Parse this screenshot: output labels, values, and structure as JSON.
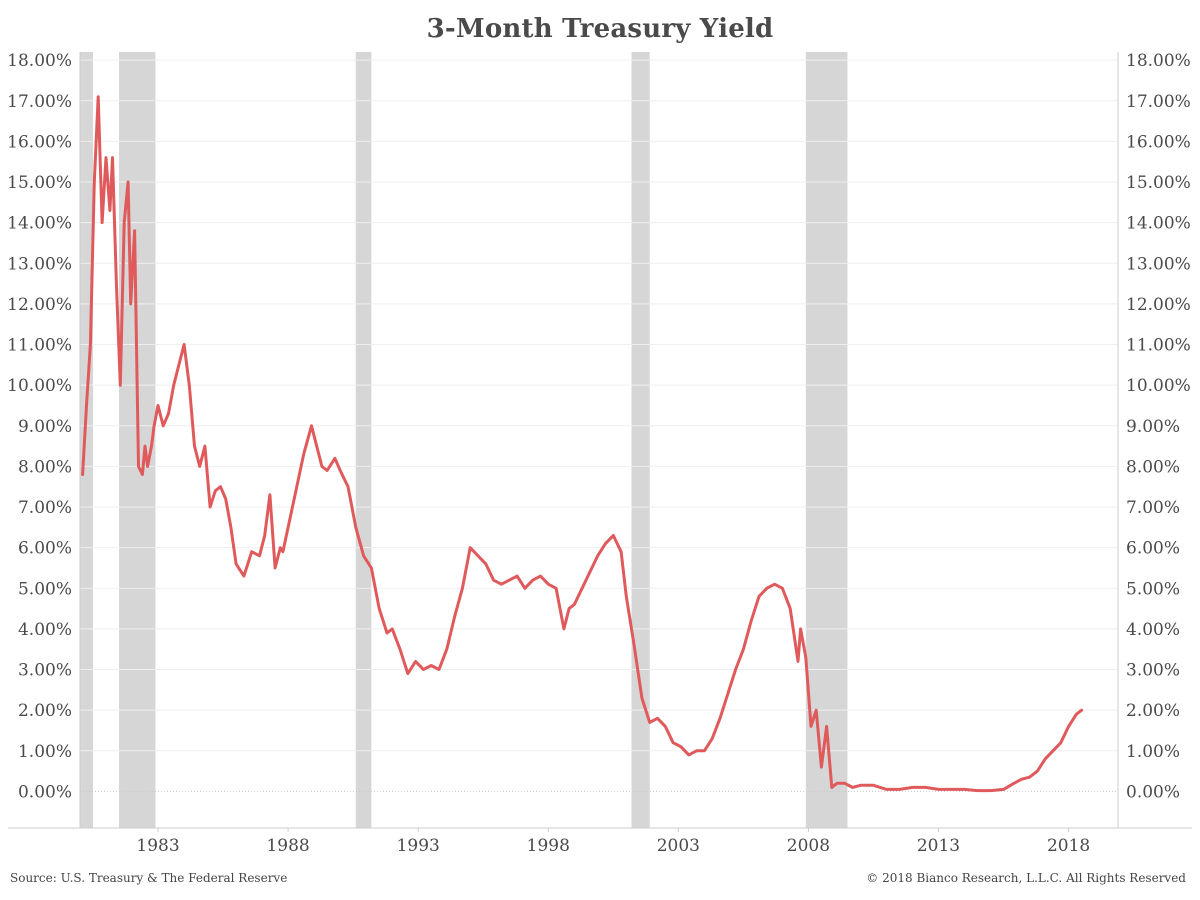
{
  "chart_data": {
    "type": "line",
    "title": "3-Month Treasury Yield",
    "xlabel": "",
    "ylabel": "",
    "ylim": [
      -0.9,
      18.2
    ],
    "xlim": [
      1980.0,
      2019.9
    ],
    "y_ticks": [
      "0.00%",
      "1.00%",
      "2.00%",
      "3.00%",
      "4.00%",
      "5.00%",
      "6.00%",
      "7.00%",
      "8.00%",
      "9.00%",
      "10.00%",
      "11.00%",
      "12.00%",
      "13.00%",
      "14.00%",
      "15.00%",
      "16.00%",
      "17.00%",
      "18.00%"
    ],
    "x_ticks": [
      "1983",
      "1988",
      "1993",
      "1998",
      "2003",
      "2008",
      "2013",
      "2018"
    ],
    "grid": true,
    "dual_y_axis": true,
    "recession_shading": [
      [
        1980.0,
        1980.5
      ],
      [
        1981.5,
        1982.9
      ],
      [
        1990.6,
        1991.2
      ],
      [
        2001.2,
        2001.9
      ],
      [
        2007.9,
        2009.5
      ]
    ],
    "series": [
      {
        "color": "#e05a5c",
        "x": [
          1980.1,
          1980.25,
          1980.4,
          1980.55,
          1980.7,
          1980.85,
          1981.0,
          1981.15,
          1981.25,
          1981.4,
          1981.55,
          1981.7,
          1981.85,
          1981.95,
          1982.1,
          1982.25,
          1982.4,
          1982.5,
          1982.6,
          1982.75,
          1982.85,
          1983.0,
          1983.2,
          1983.4,
          1983.6,
          1983.8,
          1984.0,
          1984.2,
          1984.4,
          1984.6,
          1984.8,
          1985.0,
          1985.2,
          1985.4,
          1985.6,
          1985.8,
          1986.0,
          1986.3,
          1986.6,
          1986.9,
          1987.1,
          1987.3,
          1987.5,
          1987.7,
          1987.8,
          1988.0,
          1988.3,
          1988.6,
          1988.9,
          1989.1,
          1989.3,
          1989.5,
          1989.8,
          1990.0,
          1990.3,
          1990.6,
          1990.9,
          1991.2,
          1991.5,
          1991.8,
          1992.0,
          1992.3,
          1992.6,
          1992.9,
          1993.2,
          1993.5,
          1993.8,
          1994.1,
          1994.4,
          1994.7,
          1995.0,
          1995.3,
          1995.6,
          1995.9,
          1996.2,
          1996.5,
          1996.8,
          1997.1,
          1997.4,
          1997.7,
          1998.0,
          1998.3,
          1998.6,
          1998.8,
          1999.0,
          1999.3,
          1999.6,
          1999.9,
          2000.2,
          2000.5,
          2000.8,
          2001.0,
          2001.3,
          2001.6,
          2001.9,
          2002.2,
          2002.5,
          2002.8,
          2003.1,
          2003.4,
          2003.7,
          2004.0,
          2004.3,
          2004.6,
          2004.9,
          2005.2,
          2005.5,
          2005.8,
          2006.1,
          2006.4,
          2006.7,
          2007.0,
          2007.3,
          2007.6,
          2007.7,
          2007.9,
          2008.1,
          2008.3,
          2008.5,
          2008.7,
          2008.9,
          2009.1,
          2009.4,
          2009.7,
          2010.0,
          2010.5,
          2011.0,
          2011.5,
          2012.0,
          2012.5,
          2013.0,
          2013.5,
          2014.0,
          2014.5,
          2015.0,
          2015.5,
          2015.9,
          2016.2,
          2016.5,
          2016.8,
          2017.1,
          2017.4,
          2017.7,
          2018.0,
          2018.3,
          2018.5
        ],
        "values": [
          7.8,
          9.5,
          11.0,
          15.0,
          17.1,
          14.0,
          15.6,
          14.3,
          15.6,
          12.5,
          10.0,
          14.0,
          15.0,
          12.0,
          13.8,
          8.0,
          7.8,
          8.5,
          8.0,
          8.5,
          9.0,
          9.5,
          9.0,
          9.3,
          10.0,
          10.5,
          11.0,
          10.0,
          8.5,
          8.0,
          8.5,
          7.0,
          7.4,
          7.5,
          7.2,
          6.5,
          5.6,
          5.3,
          5.9,
          5.8,
          6.3,
          7.3,
          5.5,
          6.0,
          5.9,
          6.5,
          7.4,
          8.3,
          9.0,
          8.5,
          8.0,
          7.9,
          8.2,
          7.9,
          7.5,
          6.5,
          5.8,
          5.5,
          4.5,
          3.9,
          4.0,
          3.5,
          2.9,
          3.2,
          3.0,
          3.1,
          3.0,
          3.5,
          4.3,
          5.0,
          6.0,
          5.8,
          5.6,
          5.2,
          5.1,
          5.2,
          5.3,
          5.0,
          5.2,
          5.3,
          5.1,
          5.0,
          4.0,
          4.5,
          4.6,
          5.0,
          5.4,
          5.8,
          6.1,
          6.3,
          5.9,
          4.8,
          3.6,
          2.3,
          1.7,
          1.8,
          1.6,
          1.2,
          1.1,
          0.9,
          1.0,
          1.0,
          1.3,
          1.8,
          2.4,
          3.0,
          3.5,
          4.2,
          4.8,
          5.0,
          5.1,
          5.0,
          4.5,
          3.2,
          4.0,
          3.3,
          1.6,
          2.0,
          0.6,
          1.6,
          0.1,
          0.2,
          0.2,
          0.1,
          0.15,
          0.15,
          0.05,
          0.05,
          0.1,
          0.1,
          0.05,
          0.05,
          0.05,
          0.02,
          0.02,
          0.05,
          0.2,
          0.3,
          0.35,
          0.5,
          0.8,
          1.0,
          1.2,
          1.6,
          1.9,
          2.0
        ]
      }
    ]
  },
  "footer": {
    "source": "Source: U.S. Treasury & The Federal Reserve",
    "copyright": "© 2018 Bianco Research, L.L.C. All Rights Reserved"
  }
}
